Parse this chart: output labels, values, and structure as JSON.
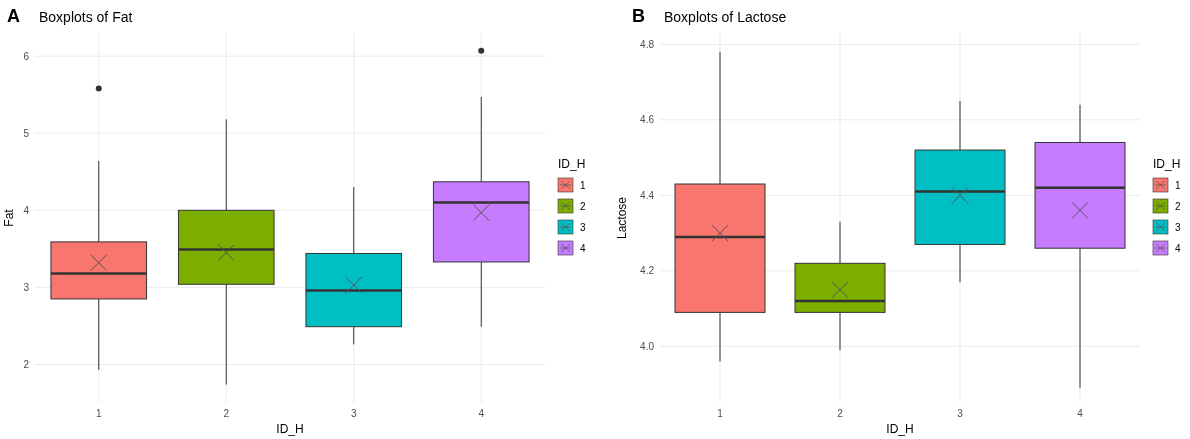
{
  "chart_data": [
    {
      "type": "box",
      "title": "Boxplots of Fat",
      "annotations": [
        "A"
      ],
      "xlabel": "ID_H",
      "ylabel": "Fat",
      "legend_title": "ID_H",
      "legend": "right",
      "grid": true,
      "categories": [
        "1",
        "2",
        "3",
        "4"
      ],
      "ylim": [
        1.5,
        6.3
      ],
      "yticks": [
        2,
        3,
        4,
        5,
        6
      ],
      "series": [
        {
          "name": "1",
          "color": "#f8766d",
          "boxes": [
            {
              "low": 1.93,
              "q1": 2.85,
              "median": 3.18,
              "q3": 3.59,
              "high": 4.64,
              "mean": 3.32,
              "outliers": [
                5.58
              ]
            },
            null,
            null,
            null
          ]
        },
        {
          "name": "2",
          "color": "#7cae00",
          "boxes": [
            null,
            {
              "low": 1.74,
              "q1": 3.04,
              "median": 3.49,
              "q3": 4.0,
              "high": 5.18,
              "mean": 3.45
            },
            null,
            null
          ]
        },
        {
          "name": "3",
          "color": "#00bfc4",
          "boxes": [
            null,
            null,
            {
              "low": 2.26,
              "q1": 2.49,
              "median": 2.96,
              "q3": 3.44,
              "high": 4.3,
              "mean": 3.03
            },
            null
          ]
        },
        {
          "name": "4",
          "color": "#c77cff",
          "boxes": [
            null,
            null,
            null,
            {
              "low": 2.49,
              "q1": 3.33,
              "median": 4.1,
              "q3": 4.37,
              "high": 5.47,
              "mean": 3.97,
              "outliers": [
                6.07
              ]
            }
          ]
        }
      ]
    },
    {
      "type": "box",
      "title": "Boxplots of Lactose",
      "annotations": [
        "B"
      ],
      "xlabel": "ID_H",
      "ylabel": "Lactose",
      "legend_title": "ID_H",
      "legend": "right",
      "grid": true,
      "categories": [
        "1",
        "2",
        "3",
        "4"
      ],
      "ylim": [
        3.85,
        4.83
      ],
      "yticks": [
        {
          "value": 4,
          "label": "4.0"
        },
        4.2,
        4.4,
        4.6,
        4.8
      ],
      "series": [
        {
          "name": "1",
          "color": "#f8766d",
          "boxes": [
            {
              "low": 3.96,
              "q1": 4.09,
              "median": 4.29,
              "q3": 4.43,
              "high": 4.78,
              "mean": 4.3
            },
            null,
            null,
            null
          ]
        },
        {
          "name": "2",
          "color": "#7cae00",
          "boxes": [
            null,
            {
              "low": 3.99,
              "q1": 4.09,
              "median": 4.12,
              "q3": 4.22,
              "high": 4.33,
              "mean": 4.15
            },
            null,
            null
          ]
        },
        {
          "name": "3",
          "color": "#00bfc4",
          "boxes": [
            null,
            null,
            {
              "low": 4.17,
              "q1": 4.27,
              "median": 4.41,
              "q3": 4.52,
              "high": 4.65,
              "mean": 4.4
            },
            null
          ]
        },
        {
          "name": "4",
          "color": "#c77cff",
          "boxes": [
            null,
            null,
            null,
            {
              "low": 3.89,
              "q1": 4.26,
              "median": 4.42,
              "q3": 4.54,
              "high": 4.64,
              "mean": 4.36
            }
          ]
        }
      ]
    }
  ]
}
